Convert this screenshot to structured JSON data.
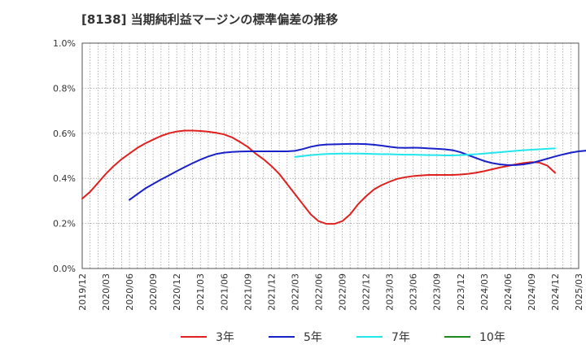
{
  "chart_data": {
    "type": "line",
    "title": "[8138]  当期純利益マージンの標準偏差の推移",
    "ylim": [
      0,
      1.0
    ],
    "ytick_labels": [
      "0.0%",
      "0.2%",
      "0.4%",
      "0.6%",
      "0.8%",
      "1.0%"
    ],
    "ytick_values": [
      0,
      0.2,
      0.4,
      0.6,
      0.8,
      1.0
    ],
    "xtick_labels": [
      "2019/12",
      "2020/03",
      "2020/06",
      "2020/09",
      "2020/12",
      "2021/03",
      "2021/06",
      "2021/09",
      "2021/12",
      "2022/03",
      "2022/06",
      "2022/09",
      "2022/12",
      "2023/03",
      "2023/06",
      "2023/09",
      "2023/12",
      "2024/03",
      "2024/06",
      "2024/09",
      "2024/12",
      "2025/03"
    ],
    "grid": true,
    "legend_position": "bottom",
    "series": [
      {
        "name": "3年",
        "color": "#e0201e",
        "x": [
          "2019/12",
          "2020/01",
          "2020/02",
          "2020/03",
          "2020/04",
          "2020/05",
          "2020/06",
          "2020/07",
          "2020/08",
          "2020/09",
          "2020/10",
          "2020/11",
          "2020/12",
          "2021/01",
          "2021/02",
          "2021/03",
          "2021/04",
          "2021/05",
          "2021/06",
          "2021/07",
          "2021/08",
          "2021/09",
          "2021/10",
          "2021/11",
          "2021/12",
          "2022/01",
          "2022/02",
          "2022/03",
          "2022/04",
          "2022/05",
          "2022/06",
          "2022/07",
          "2022/08",
          "2022/09",
          "2022/10",
          "2022/11",
          "2022/12",
          "2023/01",
          "2023/02",
          "2023/03",
          "2023/04",
          "2023/05",
          "2023/06",
          "2023/07",
          "2023/08",
          "2023/09",
          "2023/10",
          "2023/11",
          "2023/12",
          "2024/01",
          "2024/02",
          "2024/03",
          "2024/04",
          "2024/05",
          "2024/06",
          "2024/07",
          "2024/08",
          "2024/09",
          "2024/10",
          "2024/11",
          "2024/12"
        ],
        "values": [
          0.31,
          0.34,
          0.38,
          0.42,
          0.455,
          0.485,
          0.51,
          0.535,
          0.555,
          0.572,
          0.588,
          0.6,
          0.608,
          0.612,
          0.612,
          0.61,
          0.607,
          0.602,
          0.595,
          0.582,
          0.562,
          0.54,
          0.51,
          0.485,
          0.455,
          0.42,
          0.375,
          0.33,
          0.285,
          0.24,
          0.21,
          0.198,
          0.198,
          0.21,
          0.24,
          0.285,
          0.32,
          0.35,
          0.37,
          0.385,
          0.398,
          0.405,
          0.41,
          0.413,
          0.415,
          0.415,
          0.415,
          0.415,
          0.417,
          0.42,
          0.425,
          0.432,
          0.44,
          0.448,
          0.455,
          0.462,
          0.468,
          0.472,
          0.47,
          0.457,
          0.425
        ]
      },
      {
        "name": "5年",
        "color": "#1820c8",
        "x": [
          "2020/06",
          "2020/07",
          "2020/08",
          "2020/09",
          "2020/10",
          "2020/11",
          "2020/12",
          "2021/01",
          "2021/02",
          "2021/03",
          "2021/04",
          "2021/05",
          "2021/06",
          "2021/07",
          "2021/08",
          "2021/09",
          "2021/10",
          "2021/11",
          "2021/12",
          "2022/01",
          "2022/02",
          "2022/03",
          "2022/04",
          "2022/05",
          "2022/06",
          "2022/07",
          "2022/08",
          "2022/09",
          "2022/10",
          "2022/11",
          "2022/12",
          "2023/01",
          "2023/02",
          "2023/03",
          "2023/04",
          "2023/05",
          "2023/06",
          "2023/07",
          "2023/08",
          "2023/09",
          "2023/10",
          "2023/11",
          "2023/12",
          "2024/01",
          "2024/02",
          "2024/03",
          "2024/04",
          "2024/05",
          "2024/06",
          "2024/07",
          "2024/08",
          "2024/09",
          "2024/10",
          "2024/11",
          "2024/12",
          "2025/01",
          "2025/02",
          "2025/03",
          "2025/04",
          "2025/05",
          "2025/06"
        ],
        "values": [
          0.305,
          0.33,
          0.355,
          0.375,
          0.395,
          0.413,
          0.432,
          0.45,
          0.467,
          0.483,
          0.497,
          0.508,
          0.514,
          0.517,
          0.519,
          0.52,
          0.52,
          0.52,
          0.52,
          0.52,
          0.52,
          0.522,
          0.53,
          0.54,
          0.547,
          0.55,
          0.551,
          0.552,
          0.553,
          0.553,
          0.552,
          0.549,
          0.545,
          0.54,
          0.536,
          0.535,
          0.536,
          0.535,
          0.533,
          0.531,
          0.529,
          0.525,
          0.516,
          0.503,
          0.49,
          0.477,
          0.468,
          0.462,
          0.459,
          0.459,
          0.462,
          0.468,
          0.477,
          0.487,
          0.497,
          0.506,
          0.514,
          0.52,
          0.523,
          0.523,
          0.523
        ]
      },
      {
        "name": "7年",
        "color": "#22e6ee",
        "x": [
          "2022/03",
          "2022/04",
          "2022/05",
          "2022/06",
          "2022/07",
          "2022/08",
          "2022/09",
          "2022/10",
          "2022/11",
          "2022/12",
          "2023/01",
          "2023/02",
          "2023/03",
          "2023/04",
          "2023/05",
          "2023/06",
          "2023/07",
          "2023/08",
          "2023/09",
          "2023/10",
          "2023/11",
          "2023/12",
          "2024/01",
          "2024/02",
          "2024/03",
          "2024/04",
          "2024/05",
          "2024/06",
          "2024/07",
          "2024/08",
          "2024/09",
          "2024/10",
          "2024/11",
          "2024/12"
        ],
        "values": [
          0.495,
          0.499,
          0.503,
          0.506,
          0.508,
          0.509,
          0.51,
          0.51,
          0.51,
          0.509,
          0.508,
          0.507,
          0.507,
          0.506,
          0.505,
          0.505,
          0.504,
          0.503,
          0.503,
          0.502,
          0.502,
          0.503,
          0.505,
          0.507,
          0.51,
          0.513,
          0.516,
          0.519,
          0.522,
          0.525,
          0.527,
          0.529,
          0.531,
          0.533
        ]
      },
      {
        "name": "10年",
        "color": "#1a8a1a",
        "x": [],
        "values": []
      }
    ]
  }
}
